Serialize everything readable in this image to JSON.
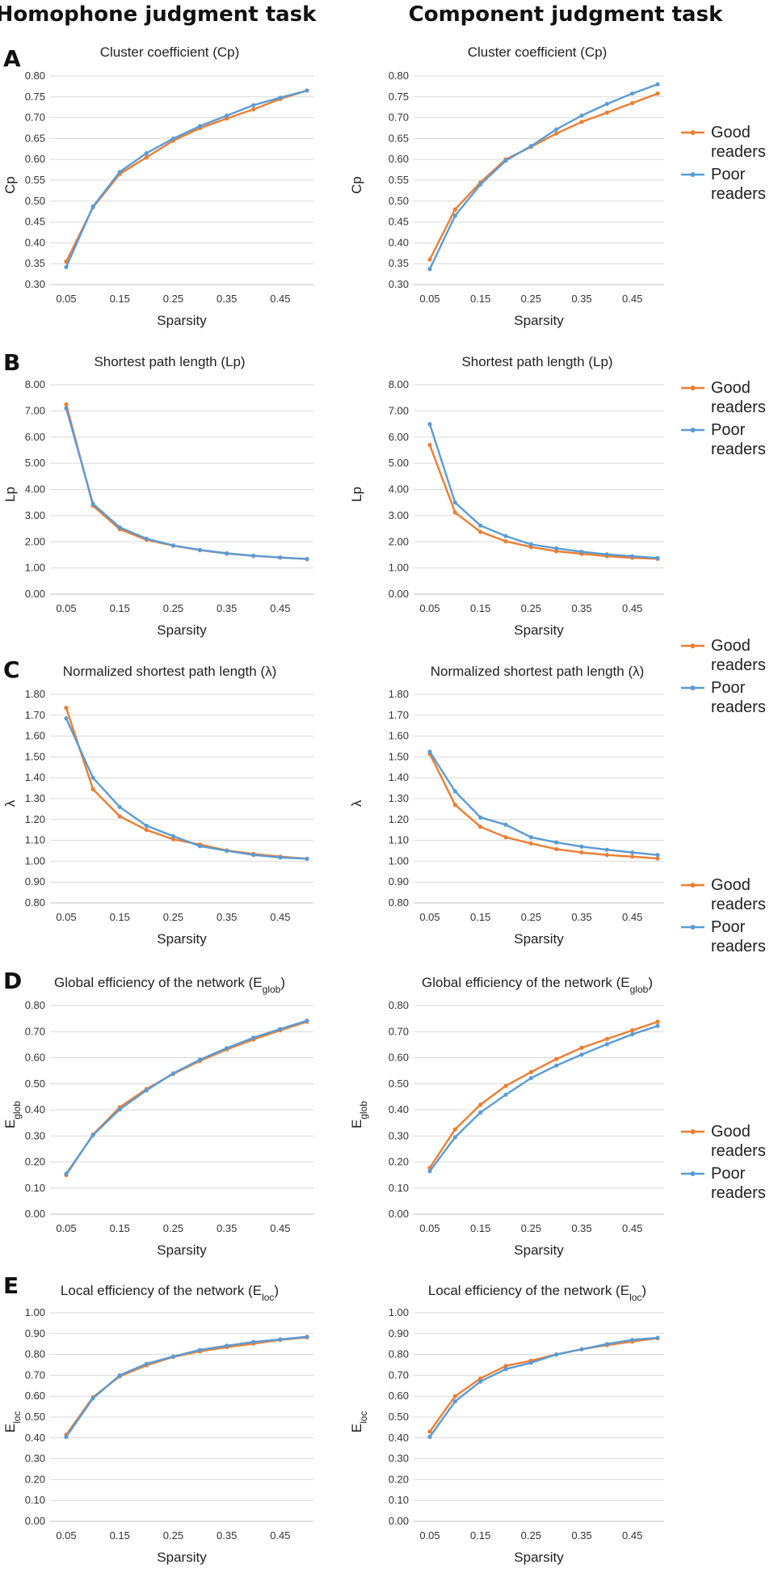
{
  "figure": {
    "col_titles": [
      "Homophone judgment task",
      "Component judgment task"
    ],
    "panel_letters": [
      "A",
      "B",
      "C",
      "D",
      "E"
    ],
    "colors": {
      "good": "#ED7D31",
      "poor": "#5B9BD5"
    },
    "legend": [
      {
        "key": "good",
        "line1": "Good",
        "line2": "readers"
      },
      {
        "key": "poor",
        "line1": "Poor",
        "line2": "readers"
      }
    ]
  },
  "chart_data": [
    {
      "id": "A-left",
      "type": "line",
      "title": "Cluster coefficient (Cp)",
      "ylabel": "Cp",
      "ylabel_sub": "",
      "xlabel": "Sparsity",
      "ylim": [
        0.3,
        0.8
      ],
      "ytick_step": 0.05,
      "xtick_labels": [
        "0.05",
        "0.15",
        "0.25",
        "0.35",
        "0.45"
      ],
      "x": [
        0.05,
        0.1,
        0.15,
        0.2,
        0.25,
        0.3,
        0.35,
        0.4,
        0.45,
        0.5
      ],
      "series": [
        {
          "name": "Good readers",
          "key": "good",
          "values": [
            0.355,
            0.485,
            0.565,
            0.605,
            0.645,
            0.675,
            0.698,
            0.72,
            0.745,
            0.765
          ]
        },
        {
          "name": "Poor readers",
          "key": "poor",
          "values": [
            0.342,
            0.487,
            0.57,
            0.615,
            0.65,
            0.68,
            0.705,
            0.73,
            0.748,
            0.765
          ]
        }
      ]
    },
    {
      "id": "A-right",
      "type": "line",
      "title": "Cluster coefficient (Cp)",
      "ylabel": "Cp",
      "ylabel_sub": "",
      "xlabel": "Sparsity",
      "ylim": [
        0.3,
        0.8
      ],
      "ytick_step": 0.05,
      "xtick_labels": [
        "0.05",
        "0.15",
        "0.25",
        "0.35",
        "0.45"
      ],
      "x": [
        0.05,
        0.1,
        0.15,
        0.2,
        0.25,
        0.3,
        0.35,
        0.4,
        0.45,
        0.5
      ],
      "series": [
        {
          "name": "Good readers",
          "key": "good",
          "values": [
            0.36,
            0.48,
            0.545,
            0.6,
            0.63,
            0.662,
            0.69,
            0.712,
            0.735,
            0.758
          ]
        },
        {
          "name": "Poor readers",
          "key": "poor",
          "values": [
            0.337,
            0.465,
            0.54,
            0.597,
            0.632,
            0.672,
            0.705,
            0.733,
            0.758,
            0.78
          ]
        }
      ]
    },
    {
      "id": "B-left",
      "type": "line",
      "title": "Shortest path length (Lp)",
      "ylabel": "Lp",
      "ylabel_sub": "",
      "xlabel": "Sparsity",
      "ylim": [
        0.0,
        8.0
      ],
      "ytick_step": 1.0,
      "xtick_labels": [
        "0.05",
        "0.15",
        "0.25",
        "0.35",
        "0.45"
      ],
      "x": [
        0.05,
        0.1,
        0.15,
        0.2,
        0.25,
        0.3,
        0.35,
        0.4,
        0.45,
        0.5
      ],
      "series": [
        {
          "name": "Good readers",
          "key": "good",
          "values": [
            7.25,
            3.38,
            2.48,
            2.08,
            1.85,
            1.68,
            1.55,
            1.46,
            1.4,
            1.34
          ]
        },
        {
          "name": "Poor readers",
          "key": "poor",
          "values": [
            7.1,
            3.45,
            2.55,
            2.12,
            1.86,
            1.69,
            1.56,
            1.47,
            1.4,
            1.34
          ]
        }
      ]
    },
    {
      "id": "B-right",
      "type": "line",
      "title": "Shortest path length (Lp)",
      "ylabel": "Lp",
      "ylabel_sub": "",
      "xlabel": "Sparsity",
      "ylim": [
        0.0,
        8.0
      ],
      "ytick_step": 1.0,
      "xtick_labels": [
        "0.05",
        "0.15",
        "0.25",
        "0.35",
        "0.45"
      ],
      "x": [
        0.05,
        0.1,
        0.15,
        0.2,
        0.25,
        0.3,
        0.35,
        0.4,
        0.45,
        0.5
      ],
      "series": [
        {
          "name": "Good readers",
          "key": "good",
          "values": [
            5.7,
            3.12,
            2.38,
            2.02,
            1.8,
            1.64,
            1.54,
            1.45,
            1.39,
            1.35
          ]
        },
        {
          "name": "Poor readers",
          "key": "poor",
          "values": [
            6.5,
            3.5,
            2.62,
            2.22,
            1.9,
            1.75,
            1.62,
            1.52,
            1.45,
            1.38
          ]
        }
      ]
    },
    {
      "id": "C-left",
      "type": "line",
      "title": "Normalized shortest path length (λ)",
      "ylabel": "λ",
      "ylabel_sub": "",
      "xlabel": "Sparsity",
      "ylim": [
        0.8,
        1.8
      ],
      "ytick_step": 0.1,
      "xtick_labels": [
        "0.05",
        "0.15",
        "0.25",
        "0.35",
        "0.45"
      ],
      "x": [
        0.05,
        0.1,
        0.15,
        0.2,
        0.25,
        0.3,
        0.35,
        0.4,
        0.45,
        0.5
      ],
      "series": [
        {
          "name": "Good readers",
          "key": "good",
          "values": [
            1.735,
            1.345,
            1.215,
            1.15,
            1.105,
            1.08,
            1.052,
            1.035,
            1.022,
            1.012
          ]
        },
        {
          "name": "Poor readers",
          "key": "poor",
          "values": [
            1.685,
            1.4,
            1.26,
            1.17,
            1.12,
            1.072,
            1.05,
            1.03,
            1.018,
            1.012
          ]
        }
      ]
    },
    {
      "id": "C-right",
      "type": "line",
      "title": "Normalized shortest path length (λ)",
      "ylabel": "λ",
      "ylabel_sub": "",
      "xlabel": "Sparsity",
      "ylim": [
        0.8,
        1.8
      ],
      "ytick_step": 0.1,
      "xtick_labels": [
        "0.05",
        "0.15",
        "0.25",
        "0.35",
        "0.45"
      ],
      "x": [
        0.05,
        0.1,
        0.15,
        0.2,
        0.25,
        0.3,
        0.35,
        0.4,
        0.45,
        0.5
      ],
      "series": [
        {
          "name": "Good readers",
          "key": "good",
          "values": [
            1.515,
            1.27,
            1.165,
            1.115,
            1.085,
            1.058,
            1.042,
            1.03,
            1.022,
            1.013
          ]
        },
        {
          "name": "Poor readers",
          "key": "poor",
          "values": [
            1.525,
            1.335,
            1.21,
            1.175,
            1.115,
            1.09,
            1.07,
            1.055,
            1.042,
            1.03
          ]
        }
      ]
    },
    {
      "id": "D-left",
      "type": "line",
      "title": "Global efficiency of the network (E",
      "title_sub": "glob",
      "title_end": ")",
      "ylabel": "E",
      "ylabel_sub": "glob",
      "xlabel": "Sparsity",
      "ylim": [
        0.0,
        0.8
      ],
      "ytick_step": 0.1,
      "xtick_labels": [
        "0.05",
        "0.15",
        "0.25",
        "0.35",
        "0.45"
      ],
      "x": [
        0.05,
        0.1,
        0.15,
        0.2,
        0.25,
        0.3,
        0.35,
        0.4,
        0.45,
        0.5
      ],
      "series": [
        {
          "name": "Good readers",
          "key": "good",
          "values": [
            0.15,
            0.305,
            0.41,
            0.48,
            0.538,
            0.588,
            0.632,
            0.67,
            0.705,
            0.738
          ]
        },
        {
          "name": "Poor readers",
          "key": "poor",
          "values": [
            0.155,
            0.303,
            0.402,
            0.475,
            0.54,
            0.593,
            0.637,
            0.677,
            0.71,
            0.742
          ]
        }
      ]
    },
    {
      "id": "D-right",
      "type": "line",
      "title": "Global efficiency of the network (E",
      "title_sub": "glob",
      "title_end": ")",
      "ylabel": "E",
      "ylabel_sub": "glob",
      "xlabel": "Sparsity",
      "ylim": [
        0.0,
        0.8
      ],
      "ytick_step": 0.1,
      "xtick_labels": [
        "0.05",
        "0.15",
        "0.25",
        "0.35",
        "0.45"
      ],
      "x": [
        0.05,
        0.1,
        0.15,
        0.2,
        0.25,
        0.3,
        0.35,
        0.4,
        0.45,
        0.5
      ],
      "series": [
        {
          "name": "Good readers",
          "key": "good",
          "values": [
            0.178,
            0.325,
            0.42,
            0.492,
            0.545,
            0.595,
            0.638,
            0.672,
            0.705,
            0.738
          ]
        },
        {
          "name": "Poor readers",
          "key": "poor",
          "values": [
            0.165,
            0.295,
            0.39,
            0.458,
            0.522,
            0.57,
            0.612,
            0.652,
            0.69,
            0.722
          ]
        }
      ]
    },
    {
      "id": "E-left",
      "type": "line",
      "title": "Local efficiency of the network (E",
      "title_sub": "loc",
      "title_end": ")",
      "ylabel": "E",
      "ylabel_sub": "loc",
      "xlabel": "Sparsity",
      "ylim": [
        0.0,
        1.0
      ],
      "ytick_step": 0.1,
      "xtick_labels": [
        "0.05",
        "0.15",
        "0.25",
        "0.35",
        "0.45"
      ],
      "x": [
        0.05,
        0.1,
        0.15,
        0.2,
        0.25,
        0.3,
        0.35,
        0.4,
        0.45,
        0.5
      ],
      "series": [
        {
          "name": "Good readers",
          "key": "good",
          "values": [
            0.415,
            0.595,
            0.695,
            0.748,
            0.788,
            0.815,
            0.835,
            0.852,
            0.87,
            0.882
          ]
        },
        {
          "name": "Poor readers",
          "key": "poor",
          "values": [
            0.405,
            0.59,
            0.7,
            0.755,
            0.79,
            0.822,
            0.842,
            0.86,
            0.872,
            0.885
          ]
        }
      ]
    },
    {
      "id": "E-right",
      "type": "line",
      "title": "Local efficiency of the network (E",
      "title_sub": "loc",
      "title_end": ")",
      "ylabel": "E",
      "ylabel_sub": "loc",
      "xlabel": "Sparsity",
      "ylim": [
        0.0,
        1.0
      ],
      "ytick_step": 0.1,
      "xtick_labels": [
        "0.05",
        "0.15",
        "0.25",
        "0.35",
        "0.45"
      ],
      "x": [
        0.05,
        0.1,
        0.15,
        0.2,
        0.25,
        0.3,
        0.35,
        0.4,
        0.45,
        0.5
      ],
      "series": [
        {
          "name": "Good readers",
          "key": "good",
          "values": [
            0.43,
            0.6,
            0.685,
            0.745,
            0.77,
            0.8,
            0.825,
            0.845,
            0.862,
            0.878
          ]
        },
        {
          "name": "Poor readers",
          "key": "poor",
          "values": [
            0.405,
            0.575,
            0.67,
            0.73,
            0.76,
            0.8,
            0.825,
            0.85,
            0.87,
            0.88
          ]
        }
      ]
    }
  ]
}
